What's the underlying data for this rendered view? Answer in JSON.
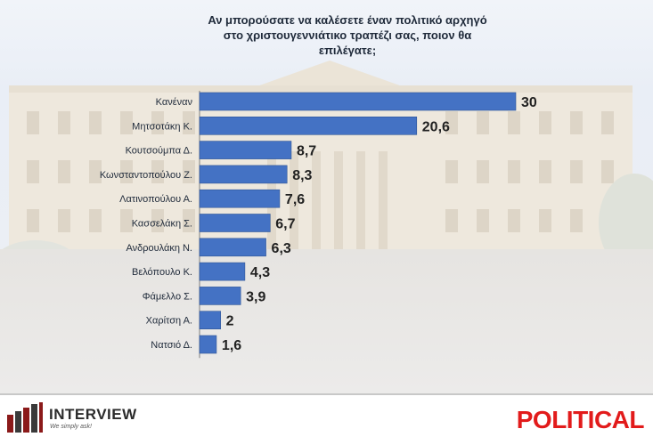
{
  "colors": {
    "bar": "#4472c4",
    "bar_stroke": "#2f5597",
    "political": "#e21b1b"
  },
  "branding": {
    "interview_name": "INTERVIEW",
    "interview_tagline": "We simply ask!",
    "political": "POLITICAL"
  },
  "chart_data": {
    "type": "bar",
    "orientation": "horizontal",
    "title_lines": [
      "Αν μπορούσατε να καλέσετε έναν πολιτικό αρχηγό",
      "στο χριστουγεννιάτικο τραπέζι σας, ποιον θα",
      "επιλέγατε;"
    ],
    "categories": [
      "Κανέναν",
      "Μητσοτάκη Κ.",
      "Κουτσούμπα Δ.",
      "Κωνσταντοπούλου Ζ.",
      "Λατινοπούλου Α.",
      "Κασσελάκη Σ.",
      "Ανδρουλάκη Ν.",
      "Βελόπουλο Κ.",
      "Φάμελλο Σ.",
      "Χαρίτση Α.",
      "Νατσιό Δ."
    ],
    "values": [
      30,
      20.6,
      8.7,
      8.3,
      7.6,
      6.7,
      6.3,
      4.3,
      3.9,
      2,
      1.6
    ],
    "value_labels": [
      "30",
      "20,6",
      "8,7",
      "8,3",
      "7,6",
      "6,7",
      "6,3",
      "4,3",
      "3,9",
      "2",
      "1,6"
    ],
    "xlim": [
      0,
      30
    ],
    "grid": false,
    "legend": "none"
  }
}
